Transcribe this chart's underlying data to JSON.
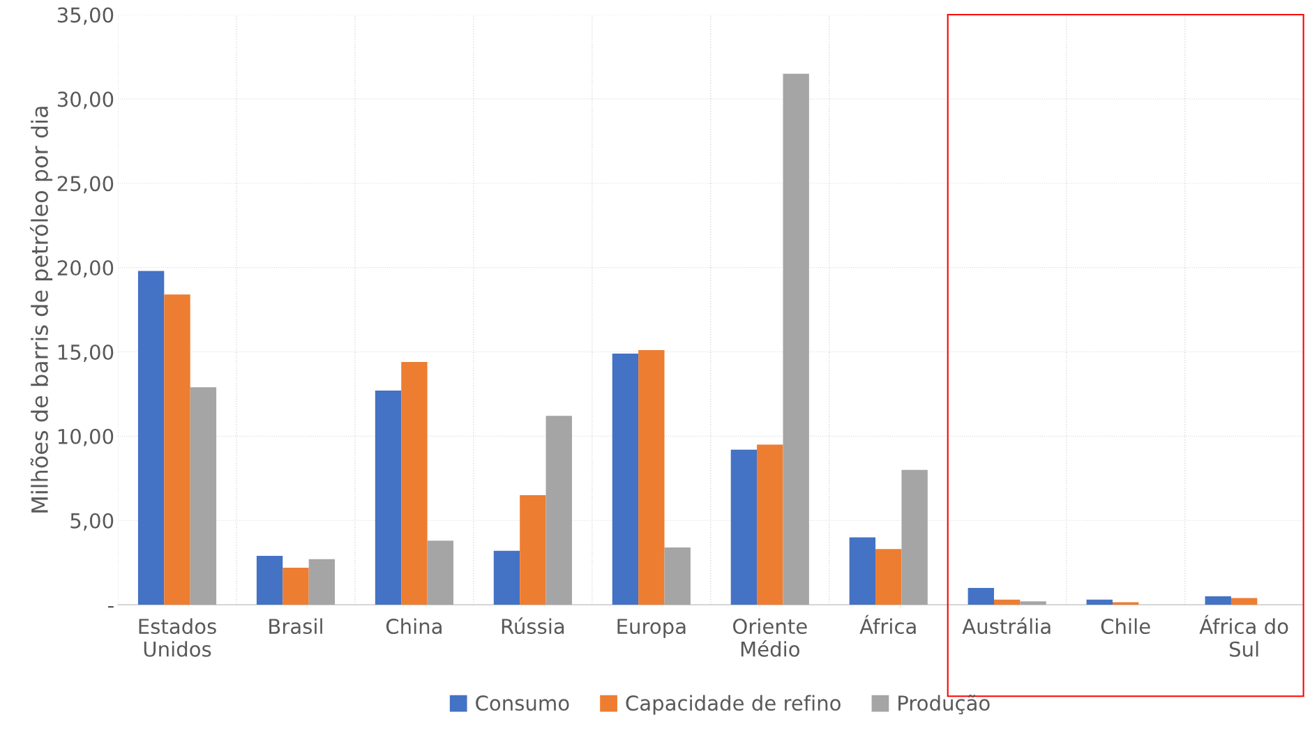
{
  "chart_data": {
    "type": "bar",
    "ylabel": "Milhões de barris de petróleo por dia",
    "categories": [
      "Estados\nUnidos",
      "Brasil",
      "China",
      "Rússia",
      "Europa",
      "Oriente\nMédio",
      "África",
      "Austrália",
      "Chile",
      "África do\nSul"
    ],
    "series": [
      {
        "name": "Consumo",
        "color": "#4472c4",
        "values": [
          19.8,
          2.9,
          12.7,
          3.2,
          14.9,
          9.2,
          4.0,
          1.0,
          0.3,
          0.5
        ]
      },
      {
        "name": "Capacidade de refino",
        "color": "#ed7d31",
        "values": [
          18.4,
          2.2,
          14.4,
          6.5,
          15.1,
          9.5,
          3.3,
          0.3,
          0.15,
          0.4
        ]
      },
      {
        "name": "Produção",
        "color": "#a5a5a5",
        "values": [
          12.9,
          2.7,
          3.8,
          11.2,
          3.4,
          31.5,
          8.0,
          0.2,
          0,
          0
        ]
      }
    ],
    "ylim": [
      0,
      35
    ],
    "yticks": [
      {
        "value": 0,
        "label": "-"
      },
      {
        "value": 5,
        "label": "5,00"
      },
      {
        "value": 10,
        "label": "10,00"
      },
      {
        "value": 15,
        "label": "15,00"
      },
      {
        "value": 20,
        "label": "20,00"
      },
      {
        "value": 25,
        "label": "25,00"
      },
      {
        "value": 30,
        "label": "30,00"
      },
      {
        "value": 35,
        "label": "35,00"
      }
    ],
    "grid": true,
    "legend": "bottom"
  }
}
